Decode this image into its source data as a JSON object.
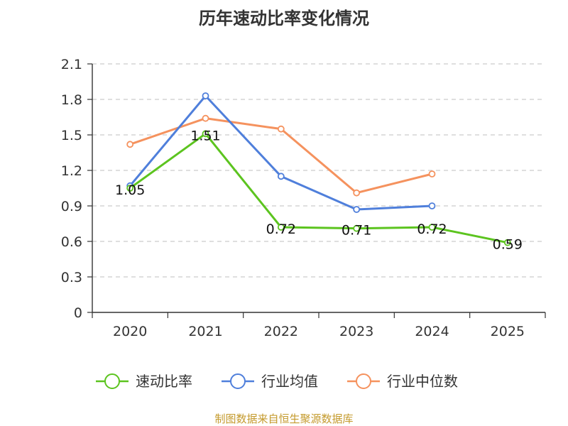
{
  "colors": {
    "axis": "#333333",
    "grid": "#cccccc",
    "source": "#c49a2c"
  },
  "chart_data": {
    "type": "line",
    "title": "历年速动比率变化情况",
    "categories": [
      "2020",
      "2021",
      "2022",
      "2023",
      "2024",
      "2025"
    ],
    "ylim": [
      0,
      2.1
    ],
    "yticks": [
      "0",
      "0.3",
      "0.6",
      "0.9",
      "1.2",
      "1.5",
      "1.8",
      "2.1"
    ],
    "grid": true,
    "legend_position": "bottom",
    "series": [
      {
        "name": "速动比率",
        "color": "#5cc41f",
        "values": [
          1.05,
          1.51,
          0.72,
          0.71,
          0.72,
          0.59
        ],
        "labels": [
          "1.05",
          "1.51",
          "0.72",
          "0.71",
          "0.72",
          "0.59"
        ]
      },
      {
        "name": "行业均值",
        "color": "#4f7fdb",
        "values": [
          1.07,
          1.83,
          1.15,
          0.87,
          0.9,
          null
        ]
      },
      {
        "name": "行业中位数",
        "color": "#f5925e",
        "values": [
          1.42,
          1.64,
          1.55,
          1.01,
          1.17,
          null
        ]
      }
    ],
    "source": "制图数据来自恒生聚源数据库"
  }
}
